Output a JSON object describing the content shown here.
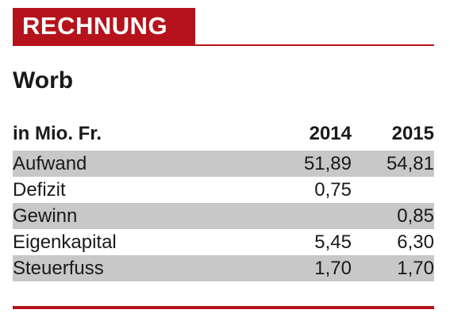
{
  "header": {
    "label": "RECHNUNG"
  },
  "title": "Worb",
  "table": {
    "columns": [
      "in Mio. Fr.",
      "2014",
      "2015"
    ],
    "rows": [
      {
        "label": "Aufwand",
        "y2014": "51,89",
        "y2015": "54,81"
      },
      {
        "label": "Defizit",
        "y2014": "0,75",
        "y2015": ""
      },
      {
        "label": "Gewinn",
        "y2014": "",
        "y2015": "0,85"
      },
      {
        "label": "Eigenkapital",
        "y2014": "5,45",
        "y2015": "6,30"
      },
      {
        "label": "Steuerfuss",
        "y2014": "1,70",
        "y2015": "1,70"
      }
    ]
  },
  "colors": {
    "accent": "#b5121b",
    "row_shade": "#c8c8c8"
  }
}
